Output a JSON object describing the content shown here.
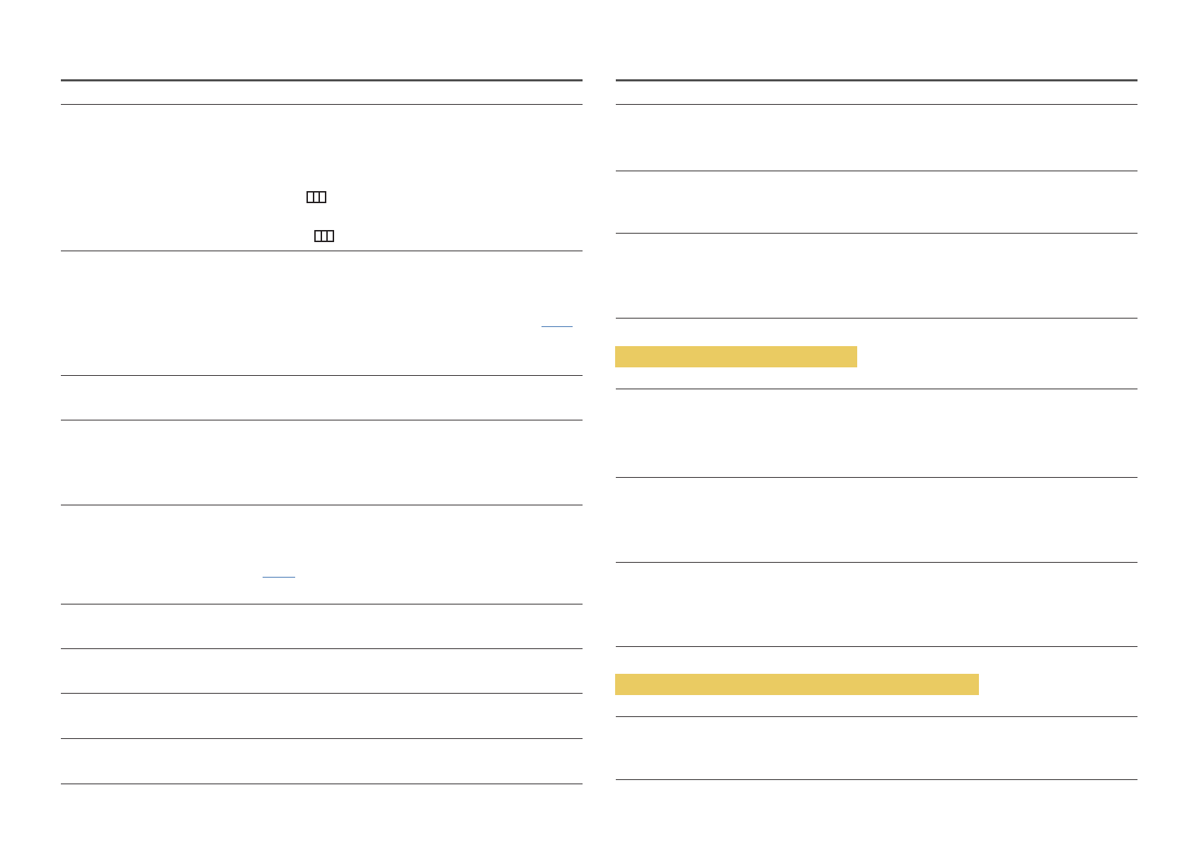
{
  "colors": {
    "rule": "#231f20",
    "header_rule": "#4d4d4d",
    "highlight": "#eacb62",
    "link": "#3a6fb0"
  },
  "icons": [
    "menu-button-icon",
    "menu-button-icon"
  ]
}
